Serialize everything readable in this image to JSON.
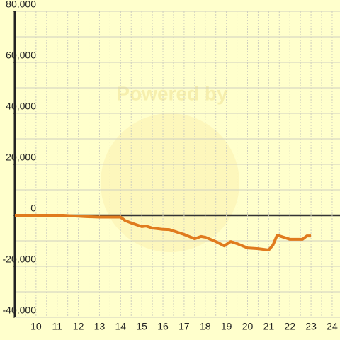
{
  "chart_data": {
    "type": "line",
    "watermark": "Powered by",
    "x": [
      9,
      11.3,
      12.3,
      13,
      14,
      14.2,
      14.5,
      15,
      15.2,
      15.5,
      16,
      16.3,
      17,
      17.5,
      17.8,
      18,
      18.5,
      18.9,
      19.2,
      19.5,
      20,
      20.5,
      21,
      21.2,
      21.4,
      21.7,
      22,
      22.6,
      22.8,
      23
    ],
    "series": [
      {
        "color": "#e07b1e",
        "values": [
          0,
          0,
          -500,
          -700,
          -700,
          -2000,
          -3000,
          -4400,
          -4200,
          -5000,
          -5500,
          -5600,
          -7500,
          -9200,
          -8300,
          -8600,
          -10300,
          -12000,
          -10300,
          -11100,
          -12800,
          -13100,
          -13600,
          -11700,
          -7800,
          -8600,
          -9400,
          -9400,
          -8100,
          -8100
        ]
      }
    ],
    "xlim": [
      9,
      24.37
    ],
    "xticks": [
      10,
      11,
      12,
      13,
      14,
      15,
      16,
      17,
      18,
      19,
      20,
      21,
      22,
      23,
      24
    ],
    "x_minor_ticks": [
      9.5,
      10.5,
      11.5,
      12.5,
      13.5,
      14.5,
      15.5,
      16.5,
      17.5,
      18.5,
      19.5,
      20.5,
      21.5,
      22.5,
      23.5
    ],
    "ylim": [
      -40000,
      80000
    ],
    "yticks": [
      {
        "value": -40000,
        "label": "-40,000"
      },
      {
        "value": -20000,
        "label": "-20,000"
      },
      0,
      {
        "value": 20000,
        "label": "20,000"
      },
      {
        "value": 40000,
        "label": "40,000"
      },
      {
        "value": 60000,
        "label": "60,000"
      },
      {
        "value": 80000,
        "label": "80,000"
      }
    ],
    "y_minor_ticks": [
      -30000,
      -10000,
      10000,
      30000,
      50000,
      70000
    ],
    "grid": true
  }
}
